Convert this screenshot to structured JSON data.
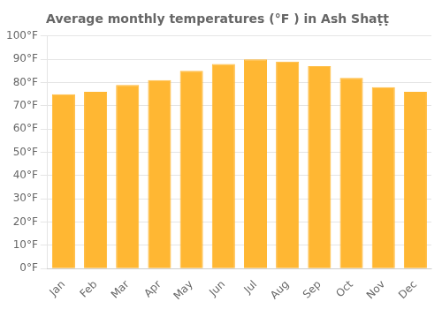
{
  "chart_data": {
    "type": "bar",
    "title": "Average monthly temperatures (°F ) in Ash Shaṭṭ",
    "categories": [
      "Jan",
      "Feb",
      "Mar",
      "Apr",
      "May",
      "Jun",
      "Jul",
      "Aug",
      "Sep",
      "Oct",
      "Nov",
      "Dec"
    ],
    "values": [
      75,
      76,
      79,
      81,
      85,
      88,
      90,
      89,
      87,
      82,
      78,
      76
    ],
    "color": "#FFB733",
    "ylim": [
      0,
      100
    ],
    "yticks": [
      {
        "value": 0,
        "label": "0°F"
      },
      {
        "value": 10,
        "label": "10°F"
      },
      {
        "value": 20,
        "label": "20°F"
      },
      {
        "value": 30,
        "label": "30°F"
      },
      {
        "value": 40,
        "label": "40°F"
      },
      {
        "value": 50,
        "label": "50°F"
      },
      {
        "value": 60,
        "label": "60°F"
      },
      {
        "value": 70,
        "label": "70°F"
      },
      {
        "value": 80,
        "label": "80°F"
      },
      {
        "value": 90,
        "label": "90°F"
      },
      {
        "value": 100,
        "label": "100°F"
      }
    ],
    "grid": true
  }
}
